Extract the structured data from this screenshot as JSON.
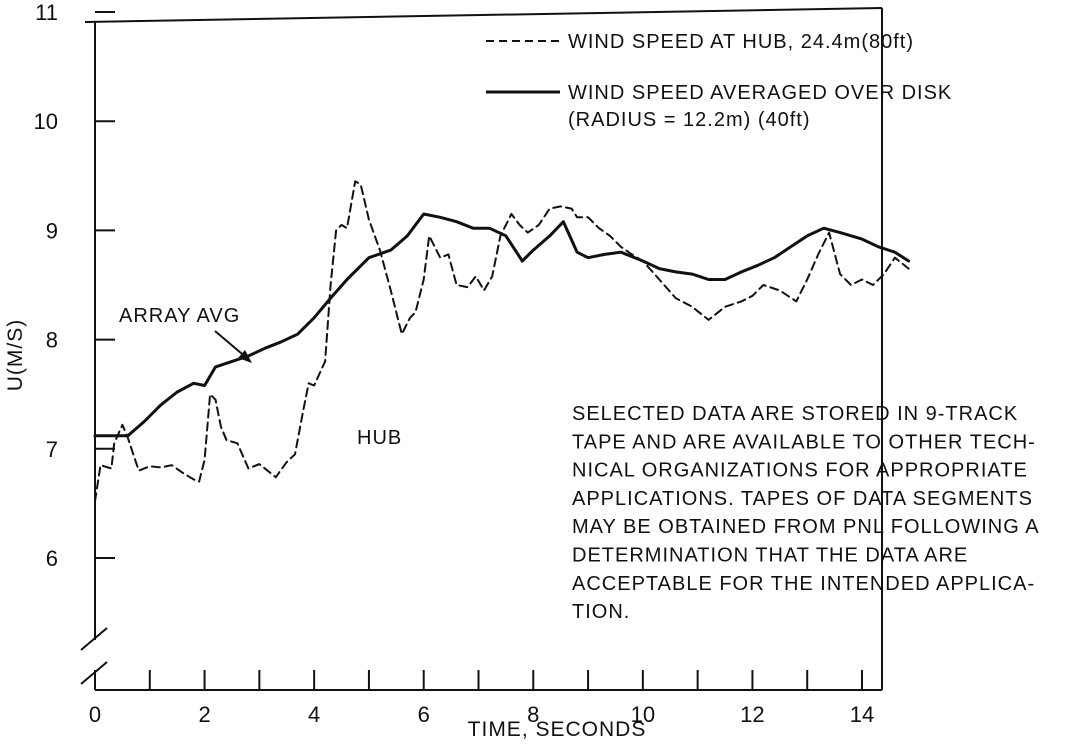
{
  "chart_data": {
    "type": "line",
    "xlabel": "TIME, SECONDS",
    "ylabel": "U(M/S)",
    "xlim": [
      0,
      15
    ],
    "ylim": [
      5.2,
      11
    ],
    "y_axis_break": true,
    "grid": false,
    "legend_position": "top-right",
    "x_ticks": [
      0,
      2,
      4,
      6,
      8,
      10,
      12,
      14
    ],
    "x_minor_ticks": [
      1,
      3,
      5,
      7,
      9,
      11,
      13
    ],
    "y_ticks": [
      6,
      7,
      8,
      9,
      10,
      11
    ],
    "series": [
      {
        "name": "WIND SPEED AT HUB, 24.4m(80ft)",
        "style": "dashed",
        "x": [
          0,
          0.1,
          0.3,
          0.35,
          0.5,
          0.6,
          0.7,
          0.8,
          1.0,
          1.2,
          1.4,
          1.6,
          1.8,
          1.9,
          2.0,
          2.1,
          2.2,
          2.3,
          2.4,
          2.6,
          2.8,
          3.0,
          3.2,
          3.3,
          3.5,
          3.65,
          3.8,
          3.9,
          4.0,
          4.2,
          4.3,
          4.4,
          4.5,
          4.6,
          4.75,
          4.85,
          5.0,
          5.2,
          5.4,
          5.6,
          5.75,
          5.85,
          6.0,
          6.1,
          6.2,
          6.3,
          6.45,
          6.6,
          6.8,
          6.95,
          7.1,
          7.25,
          7.4,
          7.6,
          7.75,
          7.9,
          8.1,
          8.3,
          8.5,
          8.7,
          8.8,
          9.0,
          9.2,
          9.4,
          9.6,
          9.8,
          10.0,
          10.3,
          10.6,
          10.9,
          11.2,
          11.5,
          11.8,
          12.0,
          12.2,
          12.5,
          12.8,
          13.0,
          13.2,
          13.4,
          13.6,
          13.8,
          14.0,
          14.2,
          14.4,
          14.6,
          14.85
        ],
        "values": [
          6.52,
          6.85,
          6.82,
          7.05,
          7.22,
          7.1,
          6.95,
          6.8,
          6.84,
          6.83,
          6.85,
          6.78,
          6.72,
          6.7,
          6.9,
          7.5,
          7.45,
          7.2,
          7.08,
          7.05,
          6.82,
          6.86,
          6.78,
          6.74,
          6.88,
          6.95,
          7.35,
          7.6,
          7.58,
          7.8,
          8.5,
          9.0,
          9.05,
          9.02,
          9.45,
          9.42,
          9.1,
          8.82,
          8.45,
          8.05,
          8.2,
          8.25,
          8.55,
          8.95,
          8.85,
          8.75,
          8.78,
          8.5,
          8.48,
          8.58,
          8.45,
          8.58,
          8.95,
          9.15,
          9.05,
          8.98,
          9.05,
          9.2,
          9.22,
          9.2,
          9.12,
          9.12,
          9.02,
          8.95,
          8.85,
          8.78,
          8.72,
          8.55,
          8.38,
          8.3,
          8.18,
          8.3,
          8.35,
          8.4,
          8.5,
          8.45,
          8.35,
          8.55,
          8.78,
          8.98,
          8.6,
          8.5,
          8.55,
          8.5,
          8.6,
          8.75,
          8.65
        ]
      },
      {
        "name": "WIND SPEED AVERAGED OVER DISK (RADIUS = 12.2m) (40ft)",
        "style": "solid",
        "x": [
          0,
          0.3,
          0.6,
          0.9,
          1.2,
          1.5,
          1.8,
          2.0,
          2.2,
          2.5,
          2.8,
          3.1,
          3.4,
          3.7,
          4.0,
          4.3,
          4.6,
          5.0,
          5.4,
          5.7,
          6.0,
          6.3,
          6.6,
          6.9,
          7.2,
          7.5,
          7.8,
          8.0,
          8.3,
          8.55,
          8.8,
          9.0,
          9.3,
          9.6,
          10.0,
          10.3,
          10.6,
          10.9,
          11.2,
          11.5,
          11.8,
          12.1,
          12.4,
          12.7,
          13.0,
          13.3,
          13.6,
          14.0,
          14.3,
          14.6,
          14.85
        ],
        "values": [
          7.12,
          7.12,
          7.12,
          7.25,
          7.4,
          7.52,
          7.6,
          7.58,
          7.75,
          7.8,
          7.85,
          7.92,
          7.98,
          8.05,
          8.2,
          8.38,
          8.55,
          8.75,
          8.82,
          8.95,
          9.15,
          9.12,
          9.08,
          9.02,
          9.02,
          8.95,
          8.72,
          8.82,
          8.95,
          9.08,
          8.8,
          8.75,
          8.78,
          8.8,
          8.72,
          8.65,
          8.62,
          8.6,
          8.55,
          8.55,
          8.62,
          8.68,
          8.75,
          8.85,
          8.95,
          9.02,
          8.98,
          8.92,
          8.85,
          8.8,
          8.72
        ]
      }
    ],
    "annotations": [
      {
        "id": "array_avg",
        "text": "ARRAY AVG"
      },
      {
        "id": "hub",
        "text": "HUB"
      }
    ],
    "legend": [
      {
        "style": "dashed",
        "lines": [
          "WIND SPEED AT HUB, 24.4m(80ft)"
        ]
      },
      {
        "style": "solid",
        "lines": [
          "WIND SPEED AVERAGED OVER DISK",
          "(RADIUS = 12.2m) (40ft)"
        ]
      }
    ],
    "note_lines": [
      "SELECTED DATA ARE STORED IN 9-TRACK",
      "TAPE AND ARE AVAILABLE TO OTHER TECH-",
      "NICAL ORGANIZATIONS FOR APPROPRIATE",
      "APPLICATIONS.  TAPES OF DATA SEGMENTS",
      "MAY BE OBTAINED FROM PNL FOLLOWING A",
      "DETERMINATION THAT THE DATA ARE",
      "ACCEPTABLE FOR THE INTENDED APPLICA-",
      "TION."
    ],
    "colors": {
      "line": "#111111",
      "background": "#ffffff"
    }
  }
}
